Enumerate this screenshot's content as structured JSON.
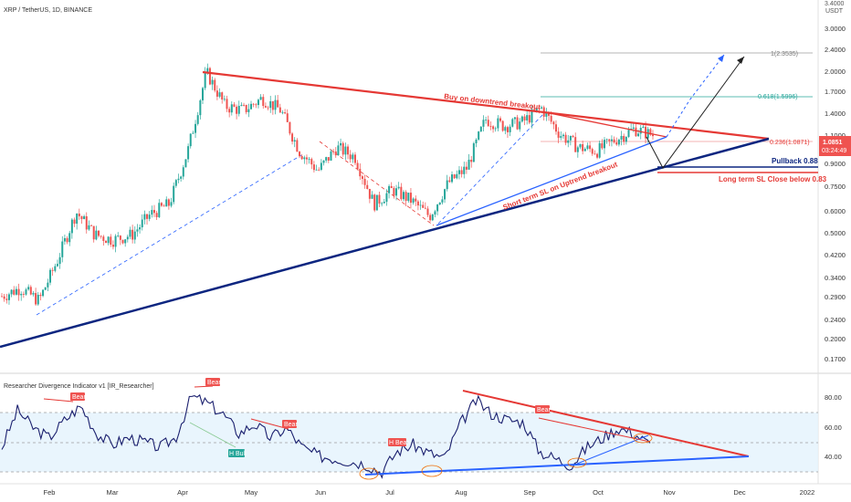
{
  "header": {
    "symbol": "XRP / TetherUS, 1D, BINANCE",
    "currency_top": "3.4000",
    "currency_unit": "USDT"
  },
  "price_axis": {
    "ticks": [
      "3.0000",
      "2.4000",
      "2.0000",
      "1.7000",
      "1.4000",
      "1.1000",
      "0.9000",
      "0.7500",
      "0.6000",
      "0.5000",
      "0.4200",
      "0.3400",
      "0.2900",
      "0.2400",
      "0.2000",
      "0.1700"
    ],
    "current_price": "1.0851",
    "countdown": "03:24:49"
  },
  "fib_levels": {
    "f1": "1(2.3535)",
    "f618": "0.618(1.5996)",
    "f236": "0.236(1.0871)"
  },
  "annotations": {
    "breakout": "Buy on downtrend breakout",
    "sl_short": "Short term SL on Uptrend breakout",
    "pullback": "Pullback  0.88",
    "sl_long": "Long term SL Close below 0.83"
  },
  "indicator": {
    "title": "Researcher Divergence Indicator v1 [IR_Researcher]",
    "ticks": [
      "80.00",
      "60.00",
      "40.00"
    ],
    "labels": {
      "bear1": "Bear",
      "bear2": "Bear",
      "bear3": "Bear",
      "bear4": "Bear",
      "hbull": "H Bull",
      "hbear": "H Bear"
    }
  },
  "time_axis": [
    "Feb",
    "Mar",
    "Apr",
    "May",
    "Jun",
    "Jul",
    "Aug",
    "Sep",
    "Oct",
    "Nov",
    "Dec",
    "2022"
  ],
  "colors": {
    "up": "#26a69a",
    "down": "#ef5350",
    "trend_red": "#e53935",
    "trend_navy": "#0d2680",
    "trend_blue": "#2962ff",
    "rsi_line": "#1a1f6e",
    "band_fill": "#e3f2fd"
  },
  "chart_data": {
    "type": "candlestick",
    "x_axis": "date (2021)",
    "y_scale": "log",
    "ylim": [
      0.15,
      3.4
    ],
    "close_series": {
      "x": [
        "Jan 10",
        "Jan 20",
        "Jan 28",
        "Feb 3",
        "Feb 10",
        "Feb 22",
        "Mar 1",
        "Mar 15",
        "Mar 25",
        "Apr 1",
        "Apr 8",
        "Apr 14",
        "Apr 20",
        "Apr 27",
        "May 5",
        "May 12",
        "May 19",
        "May 24",
        "Jun 1",
        "Jun 10",
        "Jun 22",
        "Jul 1",
        "Jul 10",
        "Jul 20",
        "Jul 28",
        "Aug 5",
        "Aug 10",
        "Aug 20",
        "Aug 30",
        "Sep 6",
        "Sep 12",
        "Sep 22",
        "Sep 30",
        "Oct 5",
        "Oct 12",
        "Oct 18"
      ],
      "close": [
        0.27,
        0.29,
        0.26,
        0.37,
        0.56,
        0.46,
        0.44,
        0.46,
        0.55,
        0.6,
        0.95,
        1.88,
        1.4,
        1.35,
        1.5,
        1.35,
        0.95,
        0.8,
        0.98,
        0.9,
        0.6,
        0.68,
        0.62,
        0.54,
        0.72,
        0.82,
        1.25,
        1.18,
        1.22,
        1.38,
        1.1,
        0.98,
        0.95,
        1.05,
        1.15,
        1.09
      ]
    },
    "indicator_series": {
      "name": "Researcher Divergence Indicator v1",
      "ylim": [
        25,
        95
      ],
      "bands": [
        30,
        50,
        70
      ],
      "values": [
        48,
        75,
        62,
        55,
        68,
        78,
        58,
        50,
        55,
        52,
        48,
        55,
        85,
        80,
        72,
        58,
        65,
        55,
        62,
        48,
        42,
        40,
        38,
        36,
        30,
        45,
        50,
        44,
        40,
        65,
        82,
        72,
        68,
        66,
        45,
        40,
        35,
        48,
        55,
        62,
        58,
        50
      ]
    },
    "trendlines": [
      "Buy on downtrend breakout",
      "Short term SL on Uptrend breakout"
    ],
    "levels": {
      "pullback": 0.88,
      "long_term_sl": 0.83,
      "fib_1": 2.3535,
      "fib_0618": 1.5996,
      "fib_0236": 1.0871
    }
  }
}
